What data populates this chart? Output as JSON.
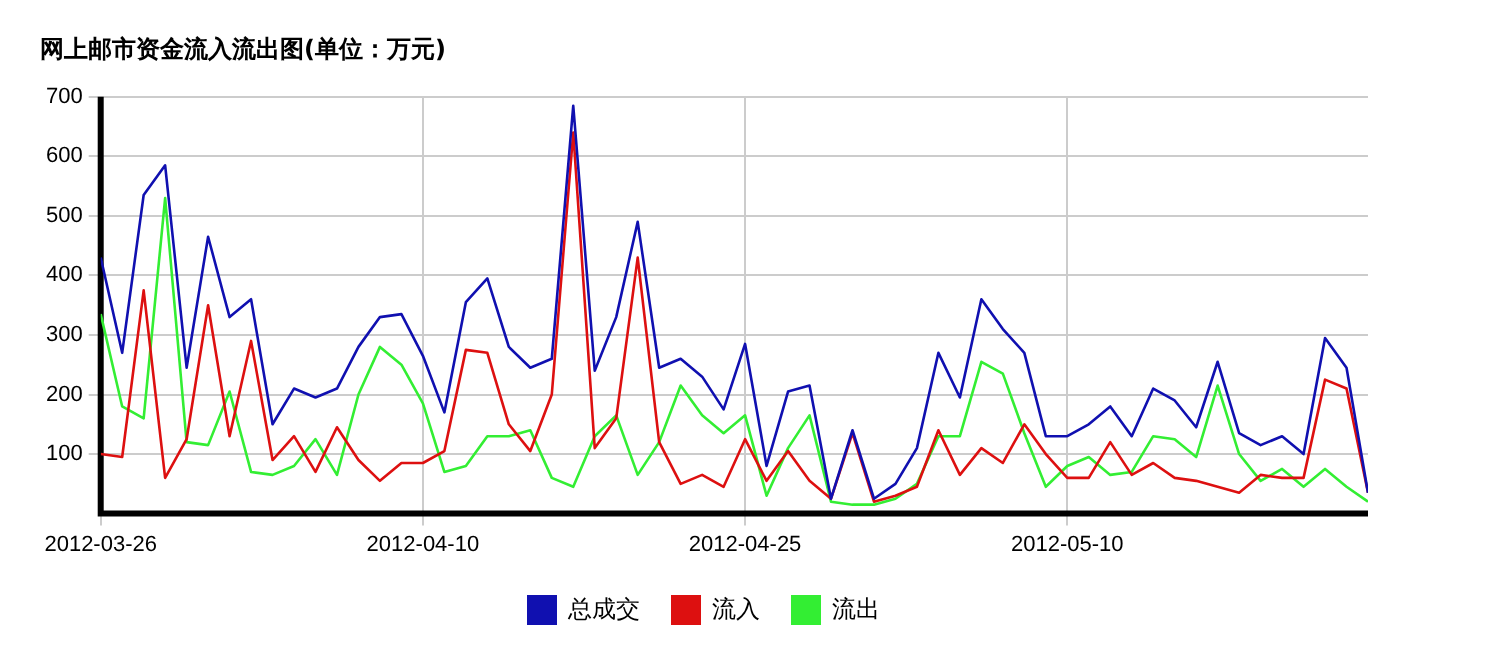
{
  "chart_data": {
    "type": "line",
    "title": "网上邮市资金流入流出图(单位：万元)",
    "x": [
      "2012-03-26",
      "2012-03-27",
      "2012-03-28",
      "2012-03-29",
      "2012-03-30",
      "2012-03-31",
      "2012-04-01",
      "2012-04-02",
      "2012-04-03",
      "2012-04-04",
      "2012-04-05",
      "2012-04-06",
      "2012-04-07",
      "2012-04-08",
      "2012-04-09",
      "2012-04-10",
      "2012-04-11",
      "2012-04-12",
      "2012-04-13",
      "2012-04-14",
      "2012-04-15",
      "2012-04-16",
      "2012-04-17",
      "2012-04-18",
      "2012-04-19",
      "2012-04-20",
      "2012-04-21",
      "2012-04-22",
      "2012-04-23",
      "2012-04-24",
      "2012-04-25",
      "2012-04-26",
      "2012-04-27",
      "2012-04-28",
      "2012-04-29",
      "2012-04-30",
      "2012-05-01",
      "2012-05-02",
      "2012-05-03",
      "2012-05-04",
      "2012-05-05",
      "2012-05-06",
      "2012-05-07",
      "2012-05-08",
      "2012-05-09",
      "2012-05-10",
      "2012-05-11",
      "2012-05-12",
      "2012-05-13",
      "2012-05-14",
      "2012-05-15",
      "2012-05-16",
      "2012-05-17",
      "2012-05-18",
      "2012-05-19",
      "2012-05-20",
      "2012-05-21",
      "2012-05-22",
      "2012-05-23",
      "2012-05-24"
    ],
    "series": [
      {
        "name": "总成交",
        "color": "#1010b0",
        "values": [
          430,
          270,
          535,
          585,
          245,
          465,
          330,
          360,
          150,
          210,
          195,
          210,
          280,
          330,
          335,
          265,
          170,
          355,
          395,
          280,
          245,
          260,
          685,
          240,
          330,
          490,
          245,
          260,
          230,
          175,
          285,
          80,
          205,
          215,
          25,
          140,
          25,
          50,
          110,
          270,
          195,
          360,
          310,
          270,
          130,
          130,
          150,
          180,
          130,
          210,
          190,
          145,
          255,
          135,
          115,
          130,
          100,
          295,
          245,
          35
        ]
      },
      {
        "name": "流入",
        "color": "#dd1010",
        "values": [
          100,
          95,
          375,
          60,
          125,
          350,
          130,
          290,
          90,
          130,
          70,
          145,
          90,
          55,
          85,
          85,
          105,
          275,
          270,
          150,
          105,
          200,
          640,
          110,
          160,
          430,
          120,
          50,
          65,
          45,
          125,
          55,
          105,
          55,
          25,
          135,
          20,
          30,
          45,
          140,
          65,
          110,
          85,
          150,
          100,
          60,
          60,
          120,
          65,
          85,
          60,
          55,
          45,
          35,
          65,
          60,
          60,
          225,
          210,
          35
        ]
      },
      {
        "name": "流出",
        "color": "#33ee33",
        "values": [
          335,
          180,
          160,
          530,
          120,
          115,
          205,
          70,
          65,
          80,
          125,
          65,
          200,
          280,
          250,
          185,
          70,
          80,
          130,
          130,
          140,
          60,
          45,
          130,
          165,
          65,
          120,
          215,
          165,
          135,
          165,
          30,
          110,
          165,
          20,
          15,
          15,
          25,
          50,
          130,
          130,
          255,
          235,
          135,
          45,
          80,
          95,
          65,
          70,
          130,
          125,
          95,
          215,
          100,
          55,
          75,
          45,
          75,
          45,
          20
        ]
      }
    ],
    "xlim": [
      "2012-03-26",
      "2012-05-24"
    ],
    "xticks": [
      {
        "value": "2012-03-26",
        "label": "2012-03-26"
      },
      {
        "value": "2012-04-10",
        "label": "2012-04-10"
      },
      {
        "value": "2012-04-25",
        "label": "2012-04-25"
      },
      {
        "value": "2012-05-10",
        "label": "2012-05-10"
      }
    ],
    "ylim": [
      0,
      700
    ],
    "yticks": [
      100,
      200,
      300,
      400,
      500,
      600,
      700
    ],
    "grid": true,
    "legend": "bottom",
    "marker": "none",
    "line_style": "solid"
  }
}
